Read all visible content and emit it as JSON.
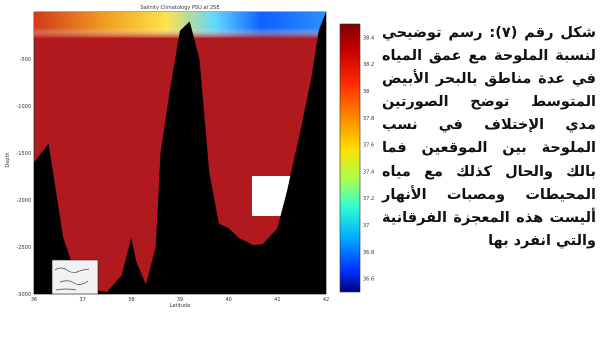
{
  "figure": {
    "title": "Salinity Climatology PSU at 25E",
    "xlabel": "Latitude",
    "ylabel": "Depth",
    "x_ticks": [
      "36",
      "37",
      "38",
      "39",
      "40",
      "41",
      "42"
    ],
    "y_ticks": [
      "-500",
      "-1000",
      "-1500",
      "-2000",
      "-2500",
      "-3000"
    ],
    "colorbar_ticks": [
      "38.4",
      "38.2",
      "38",
      "37.8",
      "37.6",
      "37.4",
      "37.2",
      "37",
      "36.8",
      "36.6"
    ],
    "colors": {
      "land": "#000000",
      "deep_water": "#b01a1f",
      "colorbar_top": "#7f0000",
      "colorbar_bottom": "#00007f"
    }
  },
  "chart_data": {
    "type": "heatmap",
    "title": "Salinity Climatology PSU at 25E",
    "xlabel": "Latitude",
    "ylabel": "Depth",
    "xlim": [
      36,
      42
    ],
    "ylim": [
      -3000,
      0
    ],
    "colorbar_range": [
      36.5,
      38.5
    ],
    "bottom_profile": {
      "x": [
        36.0,
        36.3,
        36.6,
        36.9,
        37.2,
        37.5,
        37.8,
        38.0,
        38.1,
        38.3,
        38.5,
        38.6,
        38.8,
        39.0,
        39.2,
        39.4,
        39.6,
        39.8,
        40.0,
        40.2,
        40.5,
        40.7,
        41.0,
        41.2,
        41.5,
        41.7,
        41.85,
        42.0
      ],
      "depth": [
        -1600,
        -1400,
        -2400,
        -2850,
        -2950,
        -2980,
        -2800,
        -2400,
        -2650,
        -2900,
        -2500,
        -1500,
        -800,
        -200,
        -100,
        -500,
        -1700,
        -2250,
        -2300,
        -2400,
        -2480,
        -2470,
        -2300,
        -1900,
        -1200,
        -700,
        -200,
        0
      ]
    },
    "values_note": "Surface layer near 38.2–38.4 PSU (red), deep water near 38.4 PSU"
  },
  "caption": {
    "label": "شكل رقم (٧):",
    "text": "رسم توضيحي لنسبة الملوحة مع عمق المياه في عدة مناطق بالبحر الأبيض المتوسط توضح الصورتين مدي الإختلاف في نسب الملوحة بين الموقعين فما بالك والحال كذلك مع مياه المحيطات ومصبات الأنهار أليست هذه المعجزة الفرقانية والتي انفرد بها"
  }
}
